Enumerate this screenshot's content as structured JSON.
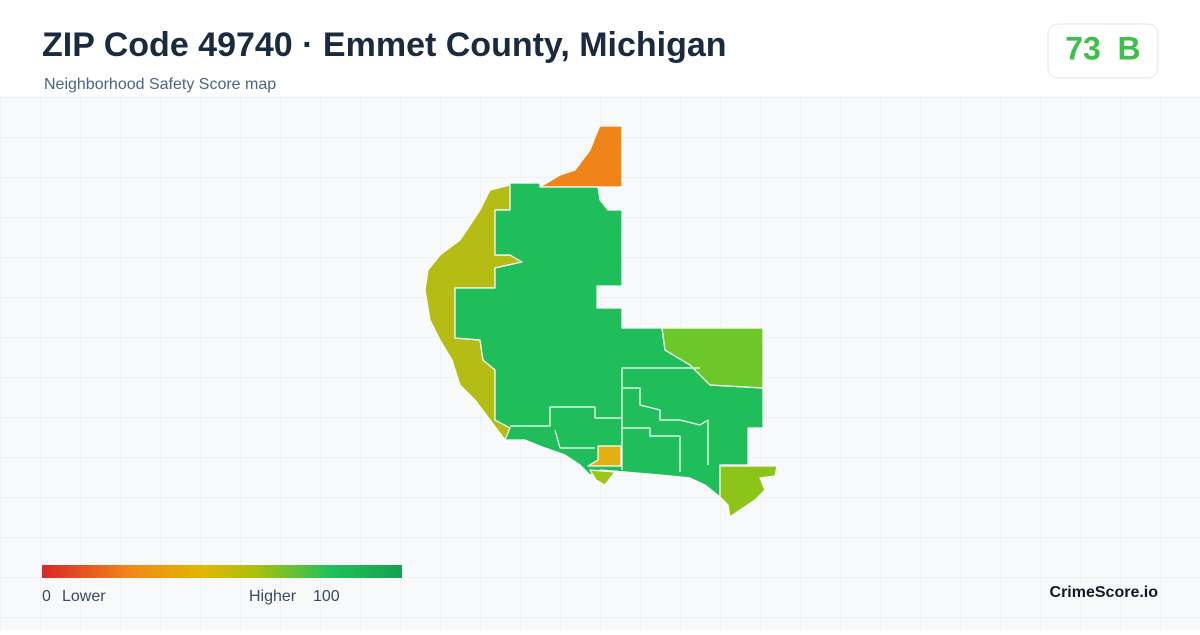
{
  "header": {
    "title": "ZIP Code 49740 · Emmet County, Michigan",
    "subtitle": "Neighborhood Safety Score map"
  },
  "score": {
    "value": "73",
    "grade": "B"
  },
  "legend": {
    "min": "0",
    "min_label": "Lower",
    "max_label": "Higher",
    "max": "100"
  },
  "brand": "CrimeScore.io"
}
